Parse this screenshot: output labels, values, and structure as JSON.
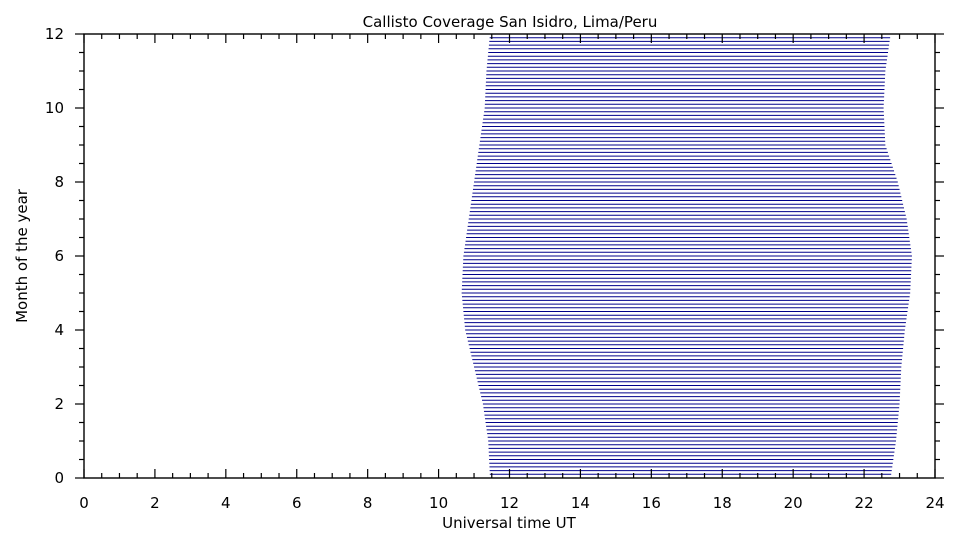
{
  "chart_data": {
    "type": "area",
    "title": "Callisto Coverage San Isidro, Lima/Peru",
    "xlabel": "Universal time UT",
    "ylabel": "Month of the year",
    "xlim": [
      0,
      24
    ],
    "ylim": [
      0,
      12
    ],
    "x_ticks": [
      0,
      2,
      4,
      6,
      8,
      10,
      12,
      14,
      16,
      18,
      20,
      22,
      24
    ],
    "y_ticks": [
      0,
      2,
      4,
      6,
      8,
      10,
      12
    ],
    "x_minor_step": 0.5,
    "y_minor_step": 0.5,
    "grid": false,
    "line_color": "#00008b",
    "line_step_month": 0.1,
    "series": [
      {
        "month": [
          0,
          1,
          2,
          3,
          4,
          5,
          6,
          7,
          8,
          9,
          10,
          11,
          12
        ],
        "start_ut": [
          11.45,
          11.4,
          11.25,
          11.0,
          10.75,
          10.65,
          10.7,
          10.85,
          11.0,
          11.15,
          11.3,
          11.35,
          11.45
        ],
        "end_ut": [
          22.75,
          22.9,
          23.0,
          23.05,
          23.15,
          23.3,
          23.35,
          23.2,
          22.95,
          22.6,
          22.55,
          22.6,
          22.75
        ]
      }
    ]
  }
}
